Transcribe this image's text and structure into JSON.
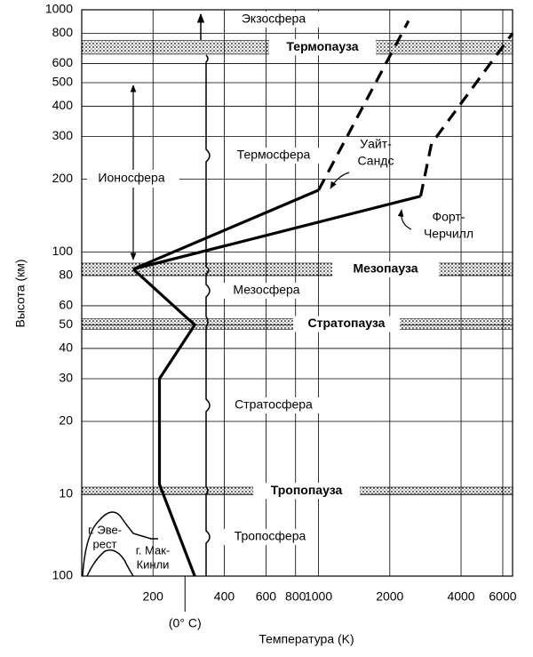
{
  "chart_data": {
    "type": "line",
    "x_label": "Температура (K)",
    "y_label": "Высота (км)",
    "xlim": [
      100,
      6600
    ],
    "xticks": [
      200,
      400,
      600,
      800,
      1000,
      2000,
      4000,
      6000
    ],
    "ylim": [
      0.1,
      1000
    ],
    "yticks": [
      {
        "value": 0.1,
        "label": "100"
      },
      10,
      20,
      30,
      40,
      50,
      60,
      80,
      100,
      200,
      300,
      400,
      500,
      600,
      800,
      1000
    ],
    "x_log": true,
    "y_log": true,
    "grid": true,
    "color": "#000000",
    "series": [
      {
        "x": [
          300,
          213,
          213,
          300,
          165
        ],
        "y": [
          0.1,
          11,
          30,
          50,
          85
        ],
        "dash": false
      },
      {
        "label_lines": [
          "Уайт-",
          "Сандс"
        ],
        "x": [
          165,
          1000
        ],
        "y": [
          85,
          180
        ],
        "dash": false
      },
      {
        "x": [
          1000,
          2400
        ],
        "y": [
          180,
          900
        ],
        "dash": true
      },
      {
        "label_lines": [
          "Форт-",
          "Черчилл"
        ],
        "x": [
          165,
          2700
        ],
        "y": [
          85,
          170
        ],
        "dash": false
      },
      {
        "x": [
          2700,
          3000,
          6600
        ],
        "y": [
          170,
          280,
          800
        ],
        "dash": true
      }
    ],
    "layers": [
      {
        "name": "Термопауза",
        "altitude": [
          656,
          747
        ]
      },
      {
        "name": "Мезопауза",
        "altitude": [
          80,
          90
        ]
      },
      {
        "name": "Стратопауза",
        "altitude": [
          48,
          53
        ]
      },
      {
        "name": "Тропопауза",
        "altitude": [
          9.8,
          10.7
        ]
      }
    ],
    "regions": [
      "Экзосфера",
      "Термосфера",
      "Мезосфера",
      "Стратосфера",
      "Тропосфера"
    ],
    "ionosphere": "Ионосфера",
    "zero_c": {
      "label": "(0° C)",
      "x": 273
    },
    "everest": [
      "г. Эве-",
      "рест"
    ],
    "mckinley": [
      "г. Мак-",
      "Кинли"
    ]
  }
}
